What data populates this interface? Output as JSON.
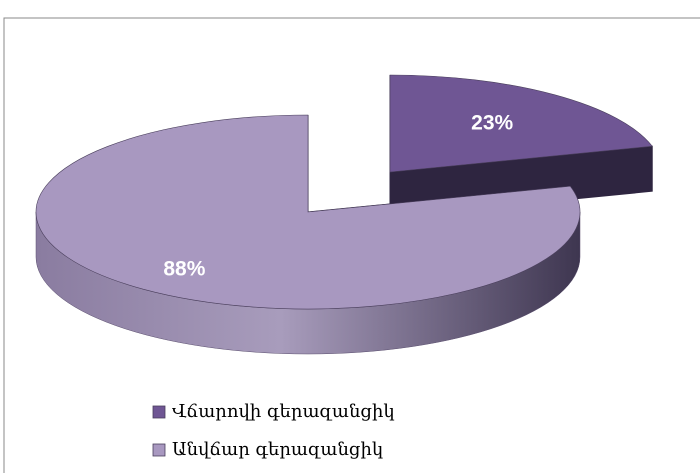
{
  "chart_data": {
    "type": "pie3d",
    "categories": [
      "Վճարովի գերազանցիկ",
      "Անվճար գերազանցիկ"
    ],
    "values": [
      23,
      88
    ],
    "value_labels": [
      "23%",
      "88%"
    ],
    "colors": [
      "#6f5694",
      "#a898c0"
    ],
    "legend": "bottom-left"
  }
}
